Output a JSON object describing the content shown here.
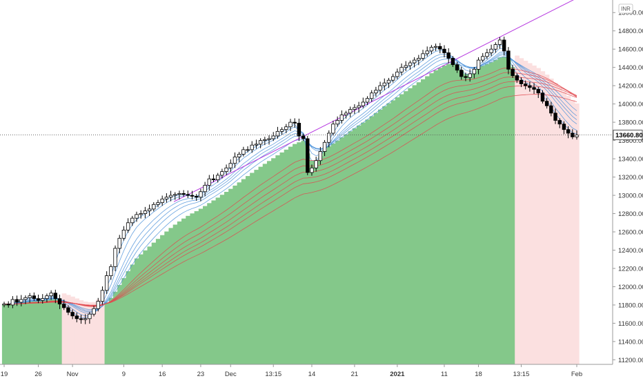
{
  "colors": {
    "background": "#ffffff",
    "bull_fill": "#84c88a",
    "bear_fill": "#fbe0e0",
    "trendline": "#b637e0",
    "fast_ma": "#4a90d9",
    "slow_ma": "#e0484d",
    "candle_up": "#ffffff",
    "candle_down": "#000000",
    "axis_text": "#333333",
    "price_tag_bg": "#ffffff"
  },
  "chart_data": {
    "type": "candlestick",
    "title": "",
    "currency": "INR",
    "last_price": "13660.80",
    "ylim": [
      11150,
      15100
    ],
    "y_ticks": [
      "11200.00",
      "11400.00",
      "11600.00",
      "11800.00",
      "12000.00",
      "12200.00",
      "12400.00",
      "12600.00",
      "12800.00",
      "13000.00",
      "13200.00",
      "13400.00",
      "13600.00",
      "13800.00",
      "14000.00",
      "14200.00",
      "14400.00",
      "14600.00",
      "14800.00",
      "15000.00"
    ],
    "x_labels": [
      "19",
      "26",
      "Nov",
      "9",
      "16",
      "23",
      "Dec",
      "13:15",
      "14",
      "21",
      "2021",
      "11",
      "18",
      "13:15",
      "Feb"
    ],
    "x_label_index": [
      0,
      8,
      16,
      28,
      37,
      46,
      53,
      63,
      72,
      82,
      92,
      103,
      111,
      121,
      134
    ],
    "closes": [
      11810,
      11800,
      11860,
      11830,
      11860,
      11880,
      11900,
      11870,
      11850,
      11870,
      11900,
      11930,
      11870,
      11810,
      11770,
      11720,
      11680,
      11650,
      11640,
      11650,
      11700,
      11760,
      11840,
      11960,
      12120,
      12220,
      12420,
      12530,
      12620,
      12700,
      12750,
      12790,
      12800,
      12830,
      12850,
      12900,
      12920,
      12960,
      12980,
      13000,
      13010,
      13020,
      13010,
      13000,
      12990,
      12980,
      13040,
      13110,
      13180,
      13170,
      13220,
      13260,
      13300,
      13350,
      13420,
      13450,
      13500,
      13500,
      13550,
      13560,
      13600,
      13610,
      13620,
      13650,
      13700,
      13720,
      13750,
      13800,
      13790,
      13650,
      13620,
      13250,
      13300,
      13380,
      13480,
      13580,
      13680,
      13780,
      13820,
      13880,
      13900,
      13940,
      13960,
      13980,
      14020,
      14060,
      14120,
      14150,
      14200,
      14230,
      14260,
      14300,
      14350,
      14400,
      14420,
      14450,
      14480,
      14500,
      14550,
      14580,
      14620,
      14630,
      14600,
      14560,
      14500,
      14430,
      14370,
      14300,
      14290,
      14330,
      14380,
      14480,
      14520,
      14560,
      14600,
      14650,
      14700,
      14580,
      14380,
      14310,
      14260,
      14220,
      14200,
      14180,
      14160,
      14120,
      14030,
      13980,
      13900,
      13820,
      13780,
      13720,
      13680,
      13640,
      13660
    ],
    "series": [
      {
        "name": "",
        "values": []
      }
    ]
  }
}
